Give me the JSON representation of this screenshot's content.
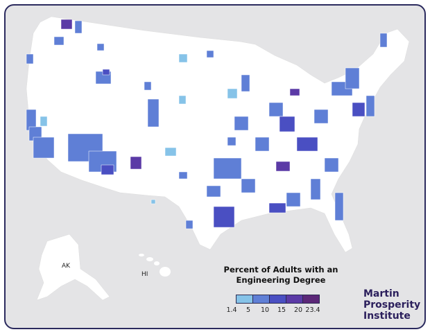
{
  "legend": {
    "title_line1": "Percent of Adults with an",
    "title_line2": "Engineering Degree",
    "ticks": [
      "1.4",
      "5",
      "10",
      "15",
      "20",
      "23.4"
    ],
    "colors": [
      "#86c3e8",
      "#5f7fd6",
      "#4a4fc2",
      "#5b3aa6",
      "#5c2878"
    ]
  },
  "labels": {
    "alaska": "AK",
    "hawaii": "HI"
  },
  "brand": {
    "line1": "Martin",
    "line2": "Prosperity",
    "line3": "Institute"
  },
  "colors": {
    "frame": "#2b2a5e",
    "background": "#e4e4e6",
    "land": "#ffffff"
  }
}
